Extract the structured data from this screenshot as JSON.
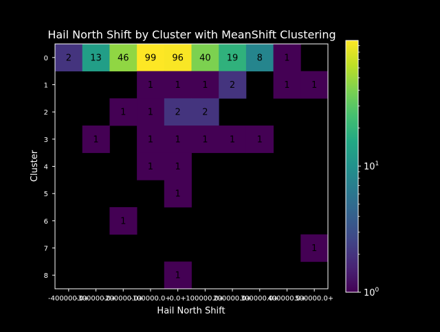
{
  "chart_data": {
    "type": "heatmap",
    "title": "Hail North Shift by Cluster with MeanShift Clustering",
    "xlabel": "Hail North Shift",
    "ylabel": "Cluster",
    "x_tick_labels": [
      "-400000.0+",
      "-300000.0+",
      "-200000.0+",
      "-100000.0+",
      "0.0+",
      "100000.0+",
      "200000.0+",
      "300000.0+",
      "400000.0+",
      "500000.0+"
    ],
    "y_tick_labels": [
      "0",
      "1",
      "2",
      "3",
      "4",
      "5",
      "6",
      "7",
      "8"
    ],
    "values": [
      [
        2,
        13,
        46,
        99,
        96,
        40,
        19,
        8,
        1,
        null
      ],
      [
        null,
        null,
        null,
        1,
        1,
        1,
        2,
        null,
        1,
        1
      ],
      [
        null,
        null,
        1,
        1,
        2,
        2,
        null,
        null,
        null,
        null
      ],
      [
        null,
        1,
        null,
        1,
        1,
        1,
        1,
        1,
        null,
        null
      ],
      [
        null,
        null,
        null,
        1,
        1,
        null,
        null,
        null,
        null,
        null
      ],
      [
        null,
        null,
        null,
        null,
        1,
        null,
        null,
        null,
        null,
        null
      ],
      [
        null,
        null,
        1,
        null,
        null,
        null,
        null,
        null,
        null,
        null
      ],
      [
        null,
        null,
        null,
        null,
        null,
        null,
        null,
        null,
        null,
        1
      ],
      [
        null,
        null,
        null,
        null,
        1,
        null,
        null,
        null,
        null,
        null
      ]
    ],
    "color_scale": "viridis",
    "scale": "log",
    "vmin": 1,
    "vmax": 99,
    "colorbar_ticks": [
      {
        "value": 1,
        "base": "10",
        "exp": "0"
      },
      {
        "value": 10,
        "base": "10",
        "exp": "1"
      }
    ]
  }
}
